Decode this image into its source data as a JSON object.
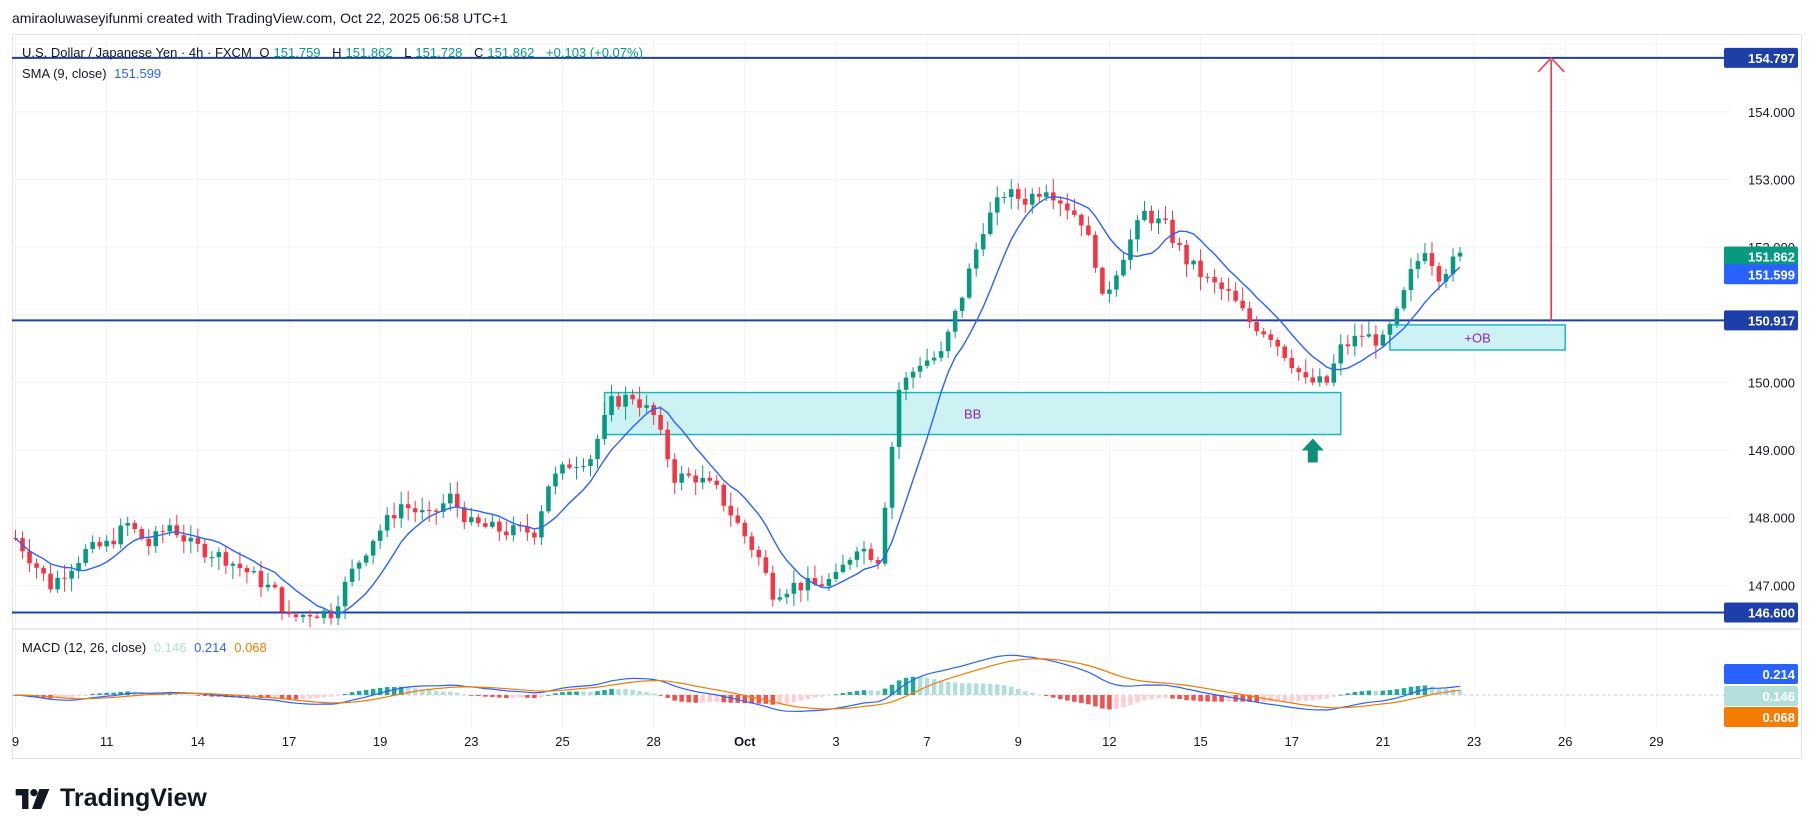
{
  "header": {
    "credit": "amiraoluwaseyifunmi created with TradingView.com, Oct 22, 2025 06:58 UTC+1"
  },
  "legend": {
    "symbol": "U.S. Dollar / Japanese Yen · 4h · FXCM",
    "o_label": "O",
    "o_value": "151.759",
    "h_label": "H",
    "h_value": "151.862",
    "l_label": "L",
    "l_value": "151.728",
    "c_label": "C",
    "c_value": "151.862",
    "change": "+0.103 (+0.07%)",
    "sma_label": "SMA (9, close)",
    "sma_value": "151.599"
  },
  "macd_legend": {
    "label": "MACD (12, 26, close)",
    "hist": "0.146",
    "macd": "0.214",
    "signal": "0.068"
  },
  "brand": {
    "name": "TradingView"
  },
  "colors": {
    "up": "#089981",
    "down": "#f23645",
    "sma": "#2962ff",
    "level": "#1e3fa8",
    "zone_fill": "#cdf2f4",
    "zone_border": "#22b5c0",
    "arrow": "#f23645",
    "up_arrow": "#0f8f7a",
    "macd_line": "#2962ff",
    "signal_line": "#f57c00",
    "hist_up": "#26a69a",
    "hist_up_light": "#b2dfdb",
    "hist_down": "#ef5350",
    "hist_down_light": "#ffcdd2"
  },
  "chart_data": {
    "type": "candlestick",
    "title": "U.S. Dollar / Japanese Yen · 4h · FXCM",
    "ylim": [
      146.4,
      155.15
    ],
    "y_ticks": [
      "154.000",
      "153.000",
      "152.000",
      "150.000",
      "149.000",
      "148.000",
      "147.000"
    ],
    "x_ticks": [
      "9",
      "11",
      "14",
      "17",
      "19",
      "23",
      "25",
      "28",
      "Oct",
      "3",
      "7",
      "9",
      "12",
      "15",
      "17",
      "21",
      "23",
      "26",
      "29"
    ],
    "x_tick_index": [
      0,
      13,
      26,
      39,
      52,
      65,
      78,
      91,
      104,
      117,
      130,
      143,
      156,
      169,
      182,
      195,
      208,
      221,
      234
    ],
    "waypoints": [
      [
        0,
        147.7
      ],
      [
        5,
        147.0
      ],
      [
        8,
        147.3
      ],
      [
        10,
        147.5
      ],
      [
        13,
        147.6
      ],
      [
        16,
        147.9
      ],
      [
        19,
        147.6
      ],
      [
        22,
        147.9
      ],
      [
        25,
        147.6
      ],
      [
        30,
        147.4
      ],
      [
        33,
        147.2
      ],
      [
        37,
        146.9
      ],
      [
        39,
        146.5
      ],
      [
        42,
        146.6
      ],
      [
        45,
        146.6
      ],
      [
        48,
        147.2
      ],
      [
        51,
        147.7
      ],
      [
        55,
        148.2
      ],
      [
        59,
        148.0
      ],
      [
        62,
        148.3
      ],
      [
        65,
        147.9
      ],
      [
        70,
        147.8
      ],
      [
        74,
        147.8
      ],
      [
        76,
        148.5
      ],
      [
        79,
        148.8
      ],
      [
        82,
        148.9
      ],
      [
        85,
        149.7
      ],
      [
        88,
        149.8
      ],
      [
        91,
        149.5
      ],
      [
        94,
        148.6
      ],
      [
        97,
        148.6
      ],
      [
        100,
        148.4
      ],
      [
        103,
        147.9
      ],
      [
        106,
        147.4
      ],
      [
        108,
        146.9
      ],
      [
        111,
        147.0
      ],
      [
        114,
        147.0
      ],
      [
        117,
        147.1
      ],
      [
        120,
        147.6
      ],
      [
        123,
        147.4
      ],
      [
        126,
        149.9
      ],
      [
        129,
        150.3
      ],
      [
        132,
        150.4
      ],
      [
        135,
        151.3
      ],
      [
        138,
        152.3
      ],
      [
        141,
        152.8
      ],
      [
        144,
        152.7
      ],
      [
        147,
        152.9
      ],
      [
        150,
        152.6
      ],
      [
        152,
        152.4
      ],
      [
        154,
        151.8
      ],
      [
        155,
        151.2
      ],
      [
        158,
        151.9
      ],
      [
        161,
        152.5
      ],
      [
        164,
        152.3
      ],
      [
        167,
        151.8
      ],
      [
        170,
        151.5
      ],
      [
        173,
        151.3
      ],
      [
        176,
        150.9
      ],
      [
        179,
        150.7
      ],
      [
        182,
        150.3
      ],
      [
        184,
        150.0
      ],
      [
        187,
        150.0
      ],
      [
        189,
        150.5
      ],
      [
        192,
        150.7
      ],
      [
        195,
        150.6
      ],
      [
        197,
        151.0
      ],
      [
        199,
        151.6
      ],
      [
        201,
        152.0
      ],
      [
        203,
        151.6
      ],
      [
        206,
        151.86
      ]
    ],
    "sma_period": 9,
    "levels": [
      {
        "price": 154.797,
        "label": "154.797"
      },
      {
        "price": 150.917,
        "label": "150.917"
      },
      {
        "price": 146.6,
        "label": "146.600"
      }
    ],
    "price_tags": [
      {
        "price": 151.862,
        "label": "151.862",
        "color": "#089981"
      },
      {
        "price": 151.599,
        "label": "151.599",
        "color": "#2962ff"
      }
    ],
    "zones": [
      {
        "label": "BB",
        "x_start": 84,
        "x_end": 189,
        "y_top": 149.85,
        "y_bottom": 149.23
      },
      {
        "label": "+OB",
        "x_start": 196,
        "x_end": 221,
        "y_top": 150.85,
        "y_bottom": 150.48
      }
    ],
    "projection_arrow": {
      "x": 219,
      "from": 150.9,
      "to": 154.797
    },
    "support_arrow": {
      "x": 185,
      "price": 149.2
    },
    "macd": {
      "label": "MACD (12, 26, close)",
      "ylim": [
        -0.9,
        1.8
      ],
      "macd_tag": "0.214",
      "hist_tag": "0.146",
      "signal_tag": "0.068"
    }
  }
}
